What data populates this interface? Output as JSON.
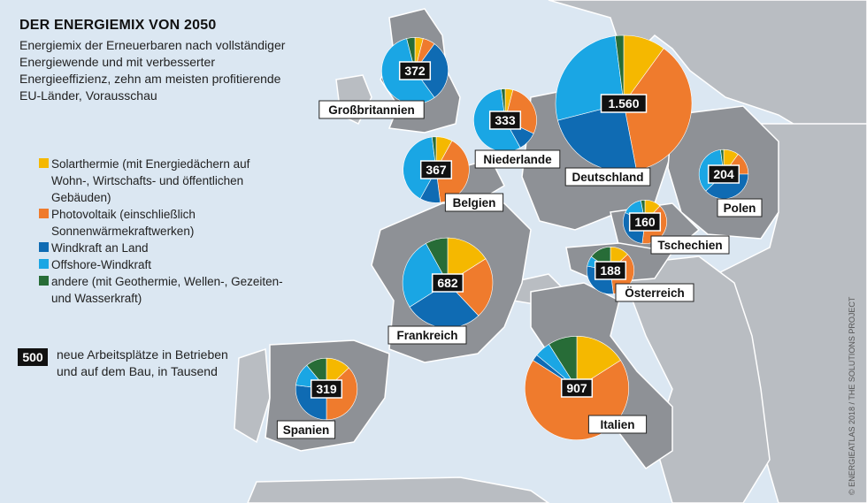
{
  "title": "DER ENERGIEMIX VON 2050",
  "subtitle": "Energiemix der Erneuerbaren nach vollständiger Energiewende und mit verbesserter Energieeffizienz, zehn am meisten profitierende EU-Länder, Vorausschau",
  "legend": [
    {
      "label": "Solarthermie (mit Energiedächern auf Wohn-, Wirtschafts- und öffentlichen Gebäuden)",
      "color": "#f5b800"
    },
    {
      "label": "Photovoltaik (einschließlich Sonnenwärmekraftwerken)",
      "color": "#ef7b2d"
    },
    {
      "label": "Windkraft an Land",
      "color": "#0f6bb3"
    },
    {
      "label": "Offshore-Windkraft",
      "color": "#1aa6e4"
    },
    {
      "label": "andere (mit Geothermie, Wellen-, Gezeiten- und Wasserkraft)",
      "color": "#276c37"
    }
  ],
  "note": {
    "badge": "500",
    "text": "neue Arbeitsplätze in Betrieben und auf dem Bau, in Tausend"
  },
  "credit": "© ENERGIEATLAS 2018 / THE SOLUTIONS PROJECT",
  "chart_data": {
    "type": "pie",
    "unit": "neue Arbeitsplätze in Tausend",
    "series_names": [
      "Solarthermie",
      "Photovoltaik",
      "Windkraft an Land",
      "Offshore-Windkraft",
      "andere"
    ],
    "countries": [
      {
        "name": "Großbritannien",
        "total": "372",
        "value": 372,
        "shares": [
          0.04,
          0.06,
          0.3,
          0.56,
          0.04
        ]
      },
      {
        "name": "Niederlande",
        "total": "333",
        "value": 333,
        "shares": [
          0.04,
          0.28,
          0.1,
          0.56,
          0.02
        ]
      },
      {
        "name": "Deutschland",
        "total": "1.560",
        "value": 1560,
        "shares": [
          0.1,
          0.37,
          0.24,
          0.27,
          0.02
        ]
      },
      {
        "name": "Belgien",
        "total": "367",
        "value": 367,
        "shares": [
          0.08,
          0.4,
          0.1,
          0.4,
          0.02
        ]
      },
      {
        "name": "Polen",
        "total": "204",
        "value": 204,
        "shares": [
          0.1,
          0.15,
          0.38,
          0.35,
          0.02
        ]
      },
      {
        "name": "Tschechien",
        "total": "160",
        "value": 160,
        "shares": [
          0.12,
          0.4,
          0.3,
          0.15,
          0.03
        ]
      },
      {
        "name": "Frankreich",
        "total": "682",
        "value": 682,
        "shares": [
          0.16,
          0.22,
          0.28,
          0.26,
          0.08
        ]
      },
      {
        "name": "Österreich",
        "total": "188",
        "value": 188,
        "shares": [
          0.13,
          0.35,
          0.3,
          0.07,
          0.15
        ]
      },
      {
        "name": "Spanien",
        "total": "319",
        "value": 319,
        "shares": [
          0.13,
          0.37,
          0.27,
          0.12,
          0.11
        ]
      },
      {
        "name": "Italien",
        "total": "907",
        "value": 907,
        "shares": [
          0.16,
          0.68,
          0.02,
          0.05,
          0.09
        ]
      }
    ]
  }
}
